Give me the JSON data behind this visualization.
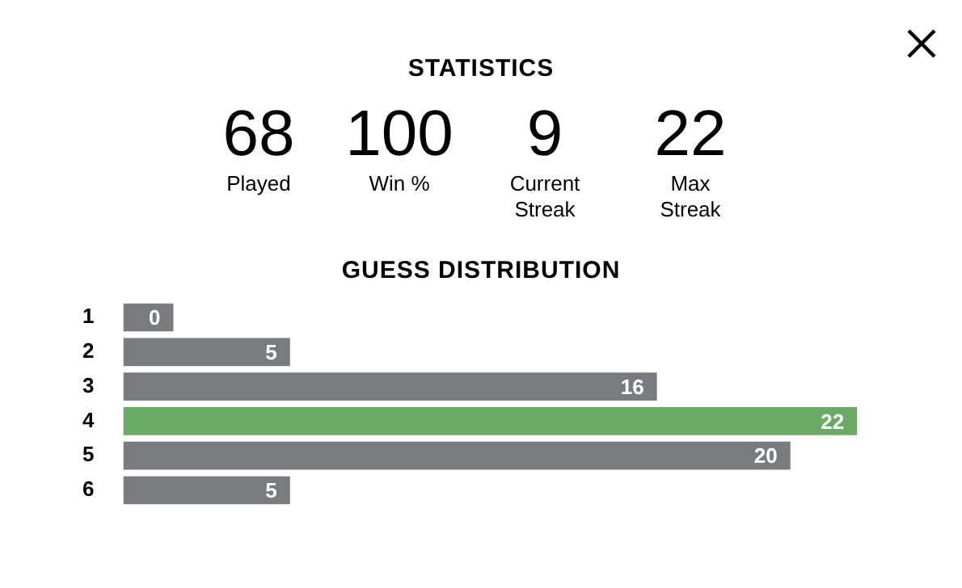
{
  "chart_data": [
    {
      "type": "other",
      "title": "STATISTICS",
      "annotations": [
        "68",
        "Played",
        "100",
        "Win %",
        "9",
        "Current Streak",
        "22",
        "Max Streak"
      ]
    },
    {
      "type": "bar",
      "orientation": "horizontal",
      "title": "GUESS DISTRIBUTION",
      "categories": [
        "1",
        "2",
        "3",
        "4",
        "5",
        "6"
      ],
      "values": [
        0,
        5,
        16,
        22,
        20,
        5
      ],
      "colors": [
        "#787c7e",
        "#787c7e",
        "#787c7e",
        "#6aaa64",
        "#787c7e",
        "#787c7e"
      ],
      "data_labels": true,
      "legend": false
    }
  ]
}
